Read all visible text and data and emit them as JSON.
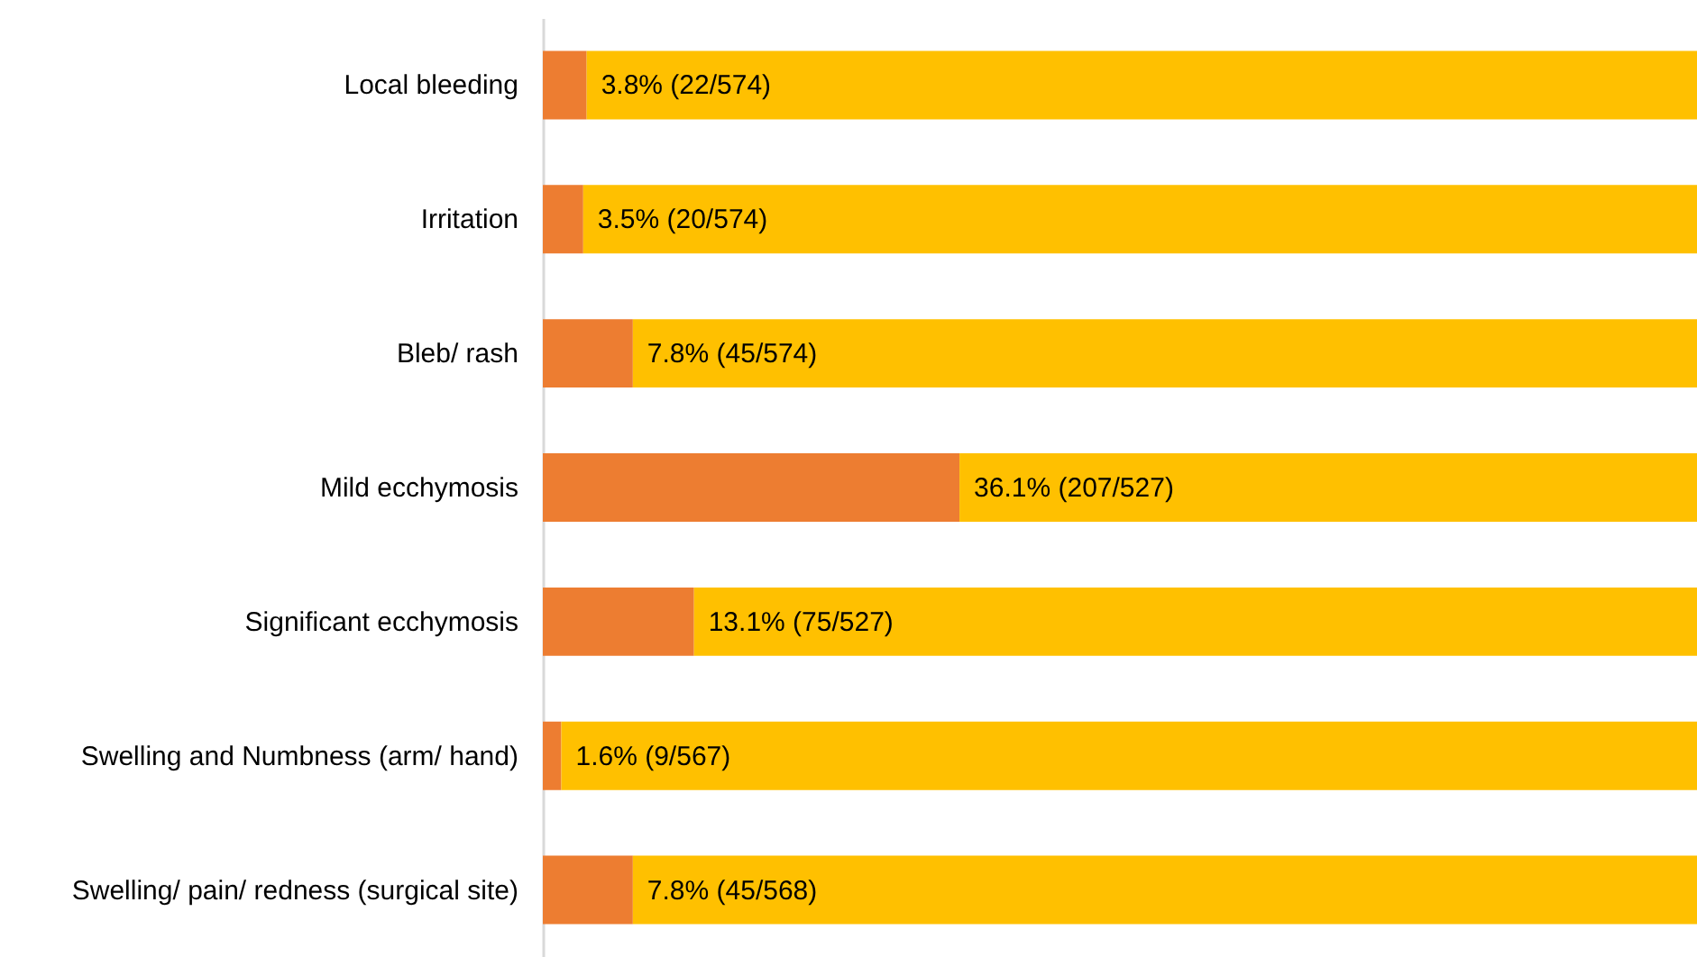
{
  "chart_data": {
    "type": "bar",
    "orientation": "horizontal",
    "stacked": true,
    "xlim": [
      0,
      100
    ],
    "tick_labels": "y",
    "categories": [
      "Local bleeding",
      "Irritation",
      "Bleb/ rash",
      "Mild ecchymosis",
      "Significant ecchymosis",
      "Swelling and Numbness (arm/ hand)",
      "Swelling/ pain/ redness (surgical site)"
    ],
    "series": [
      {
        "color": "#ed7d31",
        "values": [
          3.8,
          3.5,
          7.8,
          36.1,
          13.1,
          1.6,
          7.8
        ],
        "value_labels": [
          "3.8% (22/574)",
          "3.5% (20/574)",
          "7.8% (45/574)",
          "36.1% (207/527)",
          "13.1% (75/527)",
          "1.6% (9/567)",
          "7.8% (45/568)"
        ]
      },
      {
        "color": "#ffc000",
        "values": [
          96.2,
          96.5,
          92.2,
          63.9,
          86.9,
          98.4,
          92.2
        ]
      }
    ]
  }
}
